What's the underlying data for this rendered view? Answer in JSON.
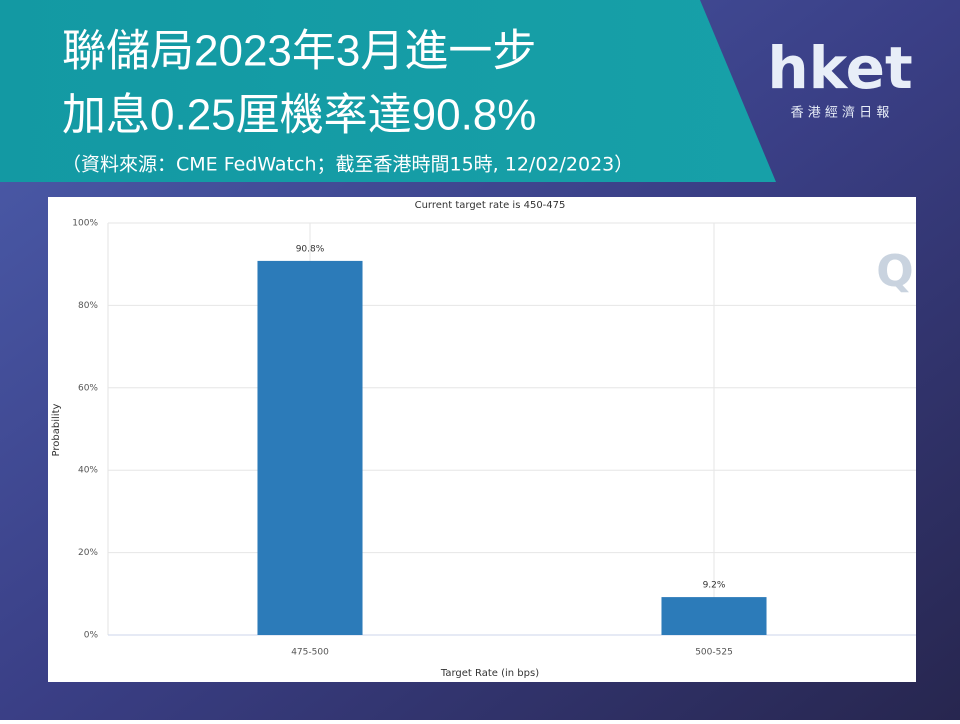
{
  "header": {
    "headline": [
      "聯儲局2023年3月進一步",
      "加息0.25厘機率達90.8%"
    ],
    "source": "（資料來源：CME FedWatch；截至香港時間15時, 12/02/2023）"
  },
  "logo": {
    "name": "hket",
    "tagline": "香 港 經 濟 日 報"
  },
  "chart_data": {
    "type": "bar",
    "title": "Current target rate is 450-475",
    "categories": [
      "475-500",
      "500-525"
    ],
    "values": [
      90.8,
      9.2
    ],
    "value_labels": [
      "90.8%",
      "9.2%"
    ],
    "color": "#2c7bb9",
    "xlabel": "Target Rate (in bps)",
    "ylabel": "Probability",
    "ylim": [
      0,
      100
    ],
    "yticks": [
      {
        "value": 0,
        "label": "0%"
      },
      {
        "value": 20,
        "label": "20%"
      },
      {
        "value": 40,
        "label": "40%"
      },
      {
        "value": 60,
        "label": "60%"
      },
      {
        "value": 80,
        "label": "80%"
      },
      {
        "value": 100,
        "label": "100%"
      }
    ],
    "grid": true
  }
}
